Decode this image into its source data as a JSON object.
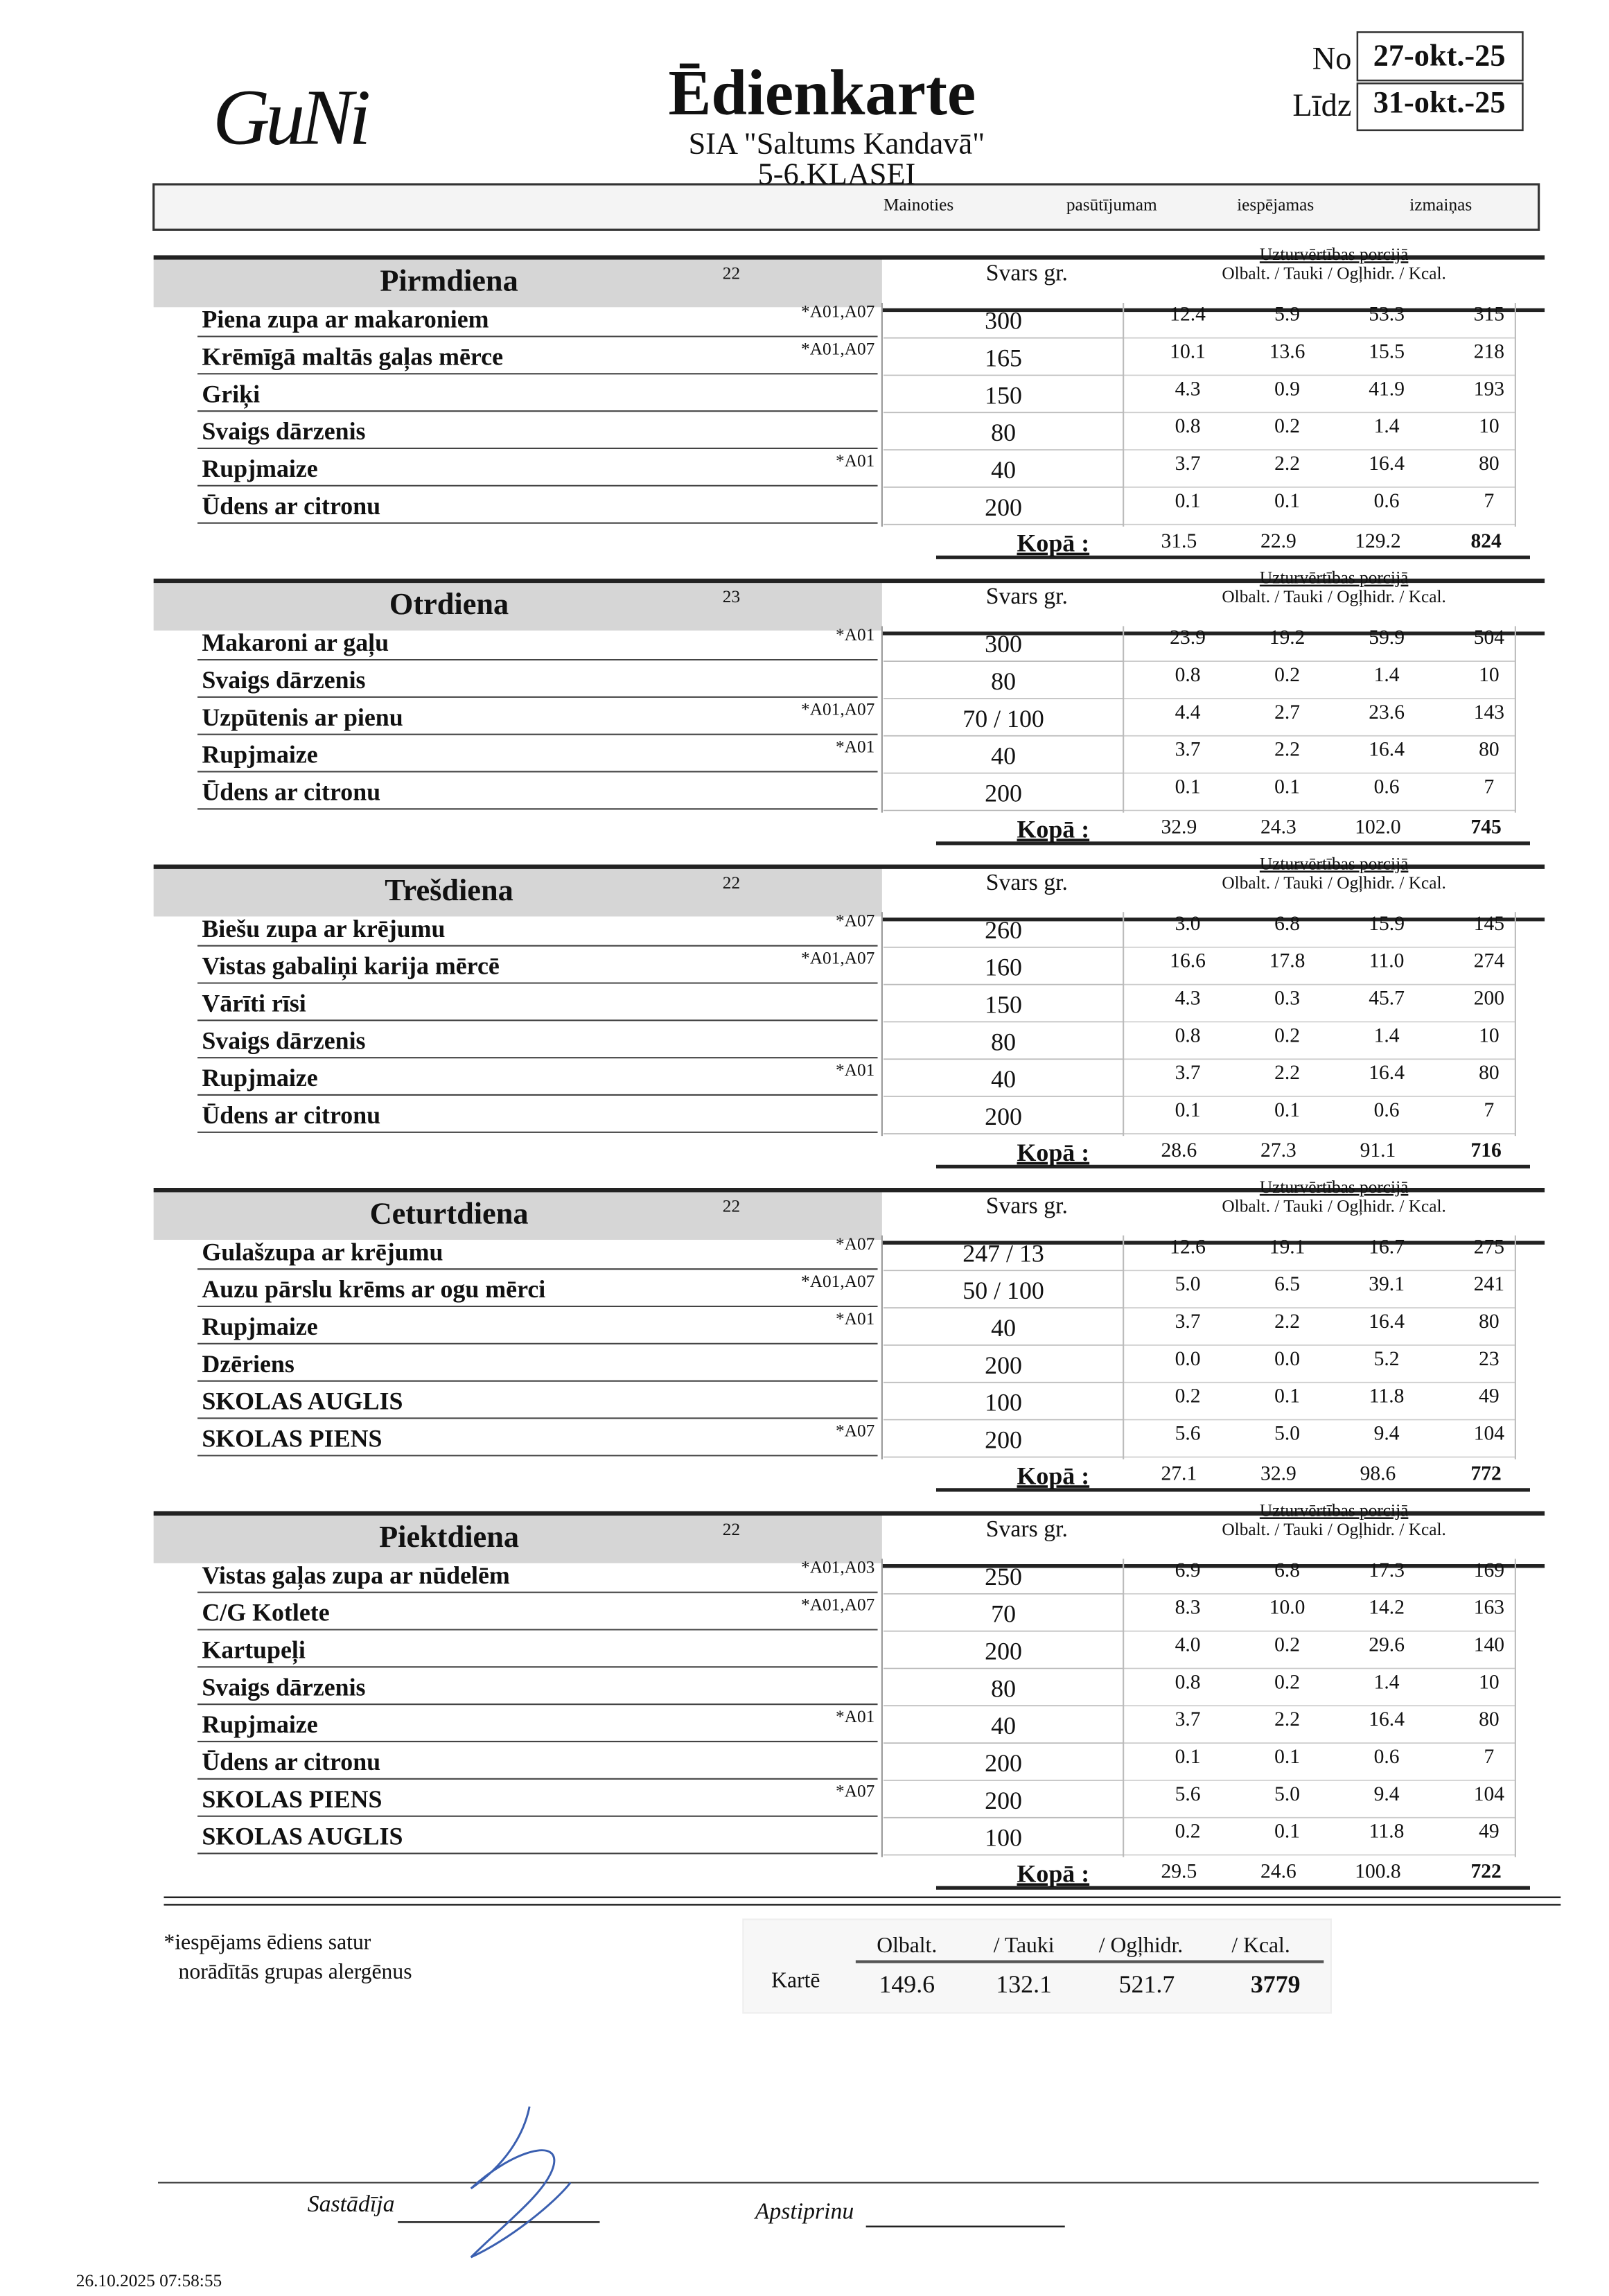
{
  "header": {
    "logo": "GuNi",
    "title": "Ēdienkarte",
    "company": "SIA \"Saltums Kandavā\"",
    "class": "5-6.KLASEI",
    "from_label": "No",
    "from": "27-okt.-25",
    "to_label": "Līdz",
    "to": "31-okt.-25",
    "notice": [
      "Mainoties",
      "pasūtījumam",
      "iespējamas",
      "izmaiņas"
    ]
  },
  "column_headers": {
    "weight": "Svars gr.",
    "nutrition": "Uzturvērtības porcijā",
    "nutrients": "Olbalt. / Tauki / Ogļhidr. / Kcal.",
    "total": "Kopā :"
  },
  "days": [
    {
      "name": "Pirmdiena",
      "mark": "22",
      "items": [
        {
          "name": "Piena zupa ar makaroniem",
          "allergens": "*A01,A07",
          "weight": "300",
          "nutrition": [
            "12.4",
            "5.9",
            "53.3",
            "315"
          ]
        },
        {
          "name": "Krēmīgā maltās gaļas mērce",
          "allergens": "*A01,A07",
          "weight": "165",
          "nutrition": [
            "10.1",
            "13.6",
            "15.5",
            "218"
          ]
        },
        {
          "name": "Griķi",
          "weight": "150",
          "nutrition": [
            "4.3",
            "0.9",
            "41.9",
            "193"
          ]
        },
        {
          "name": "Svaigs dārzenis",
          "weight": "80",
          "nutrition": [
            "0.8",
            "0.2",
            "1.4",
            "10"
          ]
        },
        {
          "name": "Rupjmaize",
          "allergens": "*A01",
          "weight": "40",
          "nutrition": [
            "3.7",
            "2.2",
            "16.4",
            "80"
          ]
        },
        {
          "name": "Ūdens ar citronu",
          "weight": "200",
          "nutrition": [
            "0.1",
            "0.1",
            "0.6",
            "7"
          ]
        }
      ],
      "total": [
        "31.5",
        "22.9",
        "129.2",
        "824"
      ]
    },
    {
      "name": "Otrdiena",
      "mark": "23",
      "items": [
        {
          "name": "Makaroni ar gaļu",
          "allergens": "*A01",
          "weight": "300",
          "nutrition": [
            "23.9",
            "19.2",
            "59.9",
            "504"
          ]
        },
        {
          "name": "Svaigs dārzenis",
          "weight": "80",
          "nutrition": [
            "0.8",
            "0.2",
            "1.4",
            "10"
          ]
        },
        {
          "name": "Uzpūtenis ar pienu",
          "allergens": "*A01,A07",
          "weight": "70 / 100",
          "nutrition": [
            "4.4",
            "2.7",
            "23.6",
            "143"
          ]
        },
        {
          "name": "Rupjmaize",
          "allergens": "*A01",
          "weight": "40",
          "nutrition": [
            "3.7",
            "2.2",
            "16.4",
            "80"
          ]
        },
        {
          "name": "Ūdens ar citronu",
          "weight": "200",
          "nutrition": [
            "0.1",
            "0.1",
            "0.6",
            "7"
          ]
        }
      ],
      "total": [
        "32.9",
        "24.3",
        "102.0",
        "745"
      ]
    },
    {
      "name": "Trešdiena",
      "mark": "22",
      "items": [
        {
          "name": "Biešu zupa ar krējumu",
          "allergens": "*A07",
          "weight": "260",
          "nutrition": [
            "3.0",
            "6.8",
            "15.9",
            "145"
          ]
        },
        {
          "name": "Vistas gabaliņi karija mērcē",
          "allergens": "*A01,A07",
          "weight": "160",
          "nutrition": [
            "16.6",
            "17.8",
            "11.0",
            "274"
          ]
        },
        {
          "name": "Vārīti rīsi",
          "weight": "150",
          "nutrition": [
            "4.3",
            "0.3",
            "45.7",
            "200"
          ]
        },
        {
          "name": "Svaigs dārzenis",
          "weight": "80",
          "nutrition": [
            "0.8",
            "0.2",
            "1.4",
            "10"
          ]
        },
        {
          "name": "Rupjmaize",
          "allergens": "*A01",
          "weight": "40",
          "nutrition": [
            "3.7",
            "2.2",
            "16.4",
            "80"
          ]
        },
        {
          "name": "Ūdens ar citronu",
          "weight": "200",
          "nutrition": [
            "0.1",
            "0.1",
            "0.6",
            "7"
          ]
        }
      ],
      "total": [
        "28.6",
        "27.3",
        "91.1",
        "716"
      ]
    },
    {
      "name": "Ceturtdiena",
      "mark": "22",
      "items": [
        {
          "name": "Gulašzupa ar krējumu",
          "allergens": "*A07",
          "weight": "247 / 13",
          "nutrition": [
            "12.6",
            "19.1",
            "16.7",
            "275"
          ]
        },
        {
          "name": "Auzu pārslu krēms ar ogu mērci",
          "allergens": "*A01,A07",
          "weight": "50 / 100",
          "nutrition": [
            "5.0",
            "6.5",
            "39.1",
            "241"
          ]
        },
        {
          "name": "Rupjmaize",
          "allergens": "*A01",
          "weight": "40",
          "nutrition": [
            "3.7",
            "2.2",
            "16.4",
            "80"
          ]
        },
        {
          "name": "Dzēriens",
          "weight": "200",
          "nutrition": [
            "0.0",
            "0.0",
            "5.2",
            "23"
          ]
        },
        {
          "name": "SKOLAS AUGLIS",
          "weight": "100",
          "nutrition": [
            "0.2",
            "0.1",
            "11.8",
            "49"
          ]
        },
        {
          "name": "SKOLAS PIENS",
          "allergens": "*A07",
          "weight": "200",
          "nutrition": [
            "5.6",
            "5.0",
            "9.4",
            "104"
          ]
        }
      ],
      "total": [
        "27.1",
        "32.9",
        "98.6",
        "772"
      ]
    },
    {
      "name": "Piektdiena",
      "mark": "22",
      "items": [
        {
          "name": "Vistas gaļas zupa ar nūdelēm",
          "allergens": "*A01,A03",
          "weight": "250",
          "nutrition": [
            "6.9",
            "6.8",
            "17.3",
            "169"
          ]
        },
        {
          "name": "C/G Kotlete",
          "allergens": "*A01,A07",
          "weight": "70",
          "nutrition": [
            "8.3",
            "10.0",
            "14.2",
            "163"
          ]
        },
        {
          "name": "Kartupeļi",
          "weight": "200",
          "nutrition": [
            "4.0",
            "0.2",
            "29.6",
            "140"
          ]
        },
        {
          "name": "Svaigs dārzenis",
          "weight": "80",
          "nutrition": [
            "0.8",
            "0.2",
            "1.4",
            "10"
          ]
        },
        {
          "name": "Rupjmaize",
          "allergens": "*A01",
          "weight": "40",
          "nutrition": [
            "3.7",
            "2.2",
            "16.4",
            "80"
          ]
        },
        {
          "name": "Ūdens ar citronu",
          "weight": "200",
          "nutrition": [
            "0.1",
            "0.1",
            "0.6",
            "7"
          ]
        },
        {
          "name": "SKOLAS PIENS",
          "allergens": "*A07",
          "weight": "200",
          "nutrition": [
            "5.6",
            "5.0",
            "9.4",
            "104"
          ]
        },
        {
          "name": "SKOLAS AUGLIS",
          "weight": "100",
          "nutrition": [
            "0.2",
            "0.1",
            "11.8",
            "49"
          ]
        }
      ],
      "total": [
        "29.5",
        "24.6",
        "100.8",
        "722"
      ]
    }
  ],
  "footer": {
    "note": [
      "*iespējams ēdiens satur",
      "norādītās grupas alergēnus"
    ],
    "summary": {
      "headers": [
        "Olbalt.",
        "/ Tauki",
        "/ Ogļhidr.",
        "/ Kcal."
      ],
      "label": "Kartē",
      "values": [
        "149.6",
        "132.1",
        "521.7",
        "3779"
      ]
    },
    "signed_by": "Sastādīja",
    "approved": "Apstiprinu",
    "timestamp": "26.10.2025 07:58:55"
  }
}
